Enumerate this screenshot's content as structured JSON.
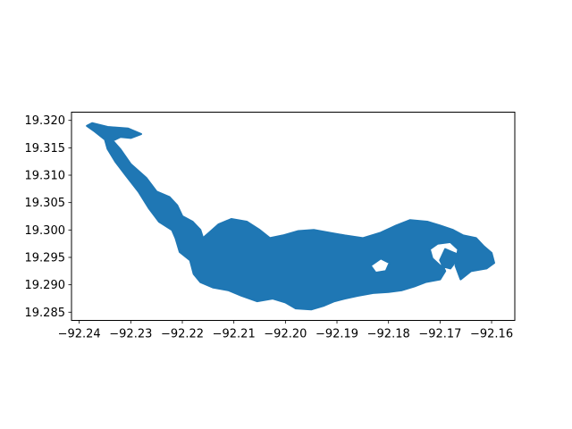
{
  "chart_data": {
    "type": "map",
    "title": "",
    "xlabel": "",
    "ylabel": "",
    "grid": false,
    "xlim": [
      -92.2415,
      -92.1555
    ],
    "ylim": [
      19.2835,
      19.3215
    ],
    "x_ticks": [
      -92.24,
      -92.23,
      -92.22,
      -92.21,
      -92.2,
      -92.19,
      -92.18,
      -92.17,
      -92.16
    ],
    "x_tick_labels": [
      "−92.24",
      "−92.23",
      "−92.22",
      "−92.21",
      "−92.20",
      "−92.19",
      "−92.18",
      "−92.17",
      "−92.16"
    ],
    "y_ticks": [
      19.285,
      19.29,
      19.295,
      19.3,
      19.305,
      19.31,
      19.315,
      19.32
    ],
    "y_tick_labels": [
      "19.285",
      "19.290",
      "19.295",
      "19.300",
      "19.305",
      "19.310",
      "19.315",
      "19.320"
    ],
    "fill_color": "#1f77b4",
    "polygon": {
      "outer": [
        [
          -92.2375,
          19.3195
        ],
        [
          -92.2345,
          19.3188
        ],
        [
          -92.2305,
          19.3185
        ],
        [
          -92.228,
          19.3175
        ],
        [
          -92.23,
          19.3168
        ],
        [
          -92.232,
          19.317
        ],
        [
          -92.2335,
          19.3163
        ],
        [
          -92.232,
          19.3147
        ],
        [
          -92.23,
          19.312
        ],
        [
          -92.227,
          19.3095
        ],
        [
          -92.225,
          19.307
        ],
        [
          -92.2225,
          19.306
        ],
        [
          -92.221,
          19.3045
        ],
        [
          -92.22,
          19.3025
        ],
        [
          -92.218,
          19.3015
        ],
        [
          -92.2165,
          19.3
        ],
        [
          -92.216,
          19.2985
        ],
        [
          -92.2148,
          19.2995
        ],
        [
          -92.213,
          19.301
        ],
        [
          -92.2105,
          19.302
        ],
        [
          -92.2075,
          19.3015
        ],
        [
          -92.205,
          19.3
        ],
        [
          -92.203,
          19.2985
        ],
        [
          -92.2005,
          19.299
        ],
        [
          -92.1975,
          19.2998
        ],
        [
          -92.1945,
          19.3
        ],
        [
          -92.1915,
          19.2995
        ],
        [
          -92.1885,
          19.299
        ],
        [
          -92.185,
          19.2985
        ],
        [
          -92.1815,
          19.2995
        ],
        [
          -92.1785,
          19.3008
        ],
        [
          -92.1758,
          19.3018
        ],
        [
          -92.1725,
          19.3015
        ],
        [
          -92.17,
          19.3008
        ],
        [
          -92.1675,
          19.3
        ],
        [
          -92.1655,
          19.299
        ],
        [
          -92.163,
          19.2985
        ],
        [
          -92.1615,
          19.297
        ],
        [
          -92.16,
          19.2958
        ],
        [
          -92.1595,
          19.294
        ],
        [
          -92.161,
          19.293
        ],
        [
          -92.164,
          19.2925
        ],
        [
          -92.166,
          19.291
        ],
        [
          -92.167,
          19.2935
        ],
        [
          -92.1665,
          19.2955
        ],
        [
          -92.169,
          19.2965
        ],
        [
          -92.17,
          19.2945
        ],
        [
          -92.169,
          19.2925
        ],
        [
          -92.17,
          19.291
        ],
        [
          -92.1728,
          19.2905
        ],
        [
          -92.175,
          19.2897
        ],
        [
          -92.1775,
          19.289
        ],
        [
          -92.18,
          19.2887
        ],
        [
          -92.183,
          19.2885
        ],
        [
          -92.186,
          19.288
        ],
        [
          -92.1885,
          19.2875
        ],
        [
          -92.1905,
          19.287
        ],
        [
          -92.1925,
          19.2862
        ],
        [
          -92.195,
          19.2855
        ],
        [
          -92.198,
          19.2857
        ],
        [
          -92.2,
          19.2868
        ],
        [
          -92.2025,
          19.2875
        ],
        [
          -92.2055,
          19.287
        ],
        [
          -92.2085,
          19.288
        ],
        [
          -92.211,
          19.289
        ],
        [
          -92.214,
          19.2895
        ],
        [
          -92.2165,
          19.2905
        ],
        [
          -92.2178,
          19.292
        ],
        [
          -92.2185,
          19.2945
        ],
        [
          -92.2205,
          19.296
        ],
        [
          -92.2213,
          19.2985
        ],
        [
          -92.222,
          19.3
        ],
        [
          -92.2245,
          19.3015
        ],
        [
          -92.2265,
          19.304
        ],
        [
          -92.2285,
          19.307
        ],
        [
          -92.231,
          19.31
        ],
        [
          -92.233,
          19.3125
        ],
        [
          -92.2345,
          19.3148
        ],
        [
          -92.235,
          19.3165
        ],
        [
          -92.237,
          19.318
        ],
        [
          -92.2385,
          19.319
        ]
      ],
      "holes": [
        [
          [
            -92.1705,
            19.2975
          ],
          [
            -92.168,
            19.2978
          ],
          [
            -92.1665,
            19.2965
          ],
          [
            -92.1668,
            19.2945
          ],
          [
            -92.168,
            19.293
          ],
          [
            -92.17,
            19.2935
          ],
          [
            -92.1715,
            19.2948
          ],
          [
            -92.172,
            19.2965
          ]
        ],
        [
          [
            -92.1835,
            19.2935
          ],
          [
            -92.1815,
            19.2948
          ],
          [
            -92.1798,
            19.294
          ],
          [
            -92.1805,
            19.2925
          ],
          [
            -92.1825,
            19.2922
          ]
        ]
      ]
    }
  }
}
